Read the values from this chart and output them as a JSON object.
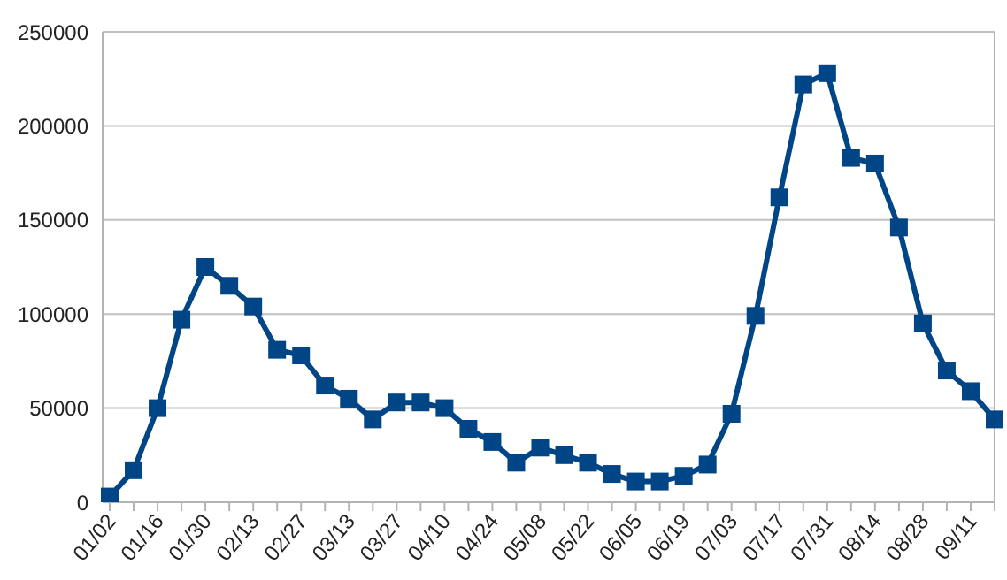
{
  "chart_data": {
    "type": "line",
    "categories": [
      "01/02",
      null,
      "01/16",
      null,
      "01/30",
      null,
      "02/13",
      null,
      "02/27",
      null,
      "03/13",
      null,
      "03/27",
      null,
      "04/10",
      null,
      "04/24",
      null,
      "05/08",
      null,
      "05/22",
      null,
      "06/05",
      null,
      "06/19",
      null,
      "07/03",
      null,
      "07/17",
      null,
      "07/31",
      null,
      "08/14",
      null,
      "08/28",
      null,
      "09/11",
      null
    ],
    "series": [
      {
        "color": "#004586",
        "values": [
          3000,
          17000,
          50000,
          97000,
          125000,
          115000,
          104000,
          81000,
          78000,
          62000,
          55000,
          44000,
          53000,
          53000,
          50000,
          39000,
          32000,
          21000,
          29000,
          25000,
          21000,
          15000,
          11000,
          11000,
          14000,
          20000,
          47000,
          99000,
          162000,
          222000,
          228000,
          183000,
          180000,
          146000,
          95000,
          70000,
          59000,
          44000
        ]
      }
    ],
    "ylim": [
      0,
      250000
    ],
    "yticks": [
      0,
      50000,
      100000,
      150000,
      200000,
      250000
    ],
    "grid": "y",
    "legend": false,
    "marker": "square",
    "line_style": "solid"
  }
}
